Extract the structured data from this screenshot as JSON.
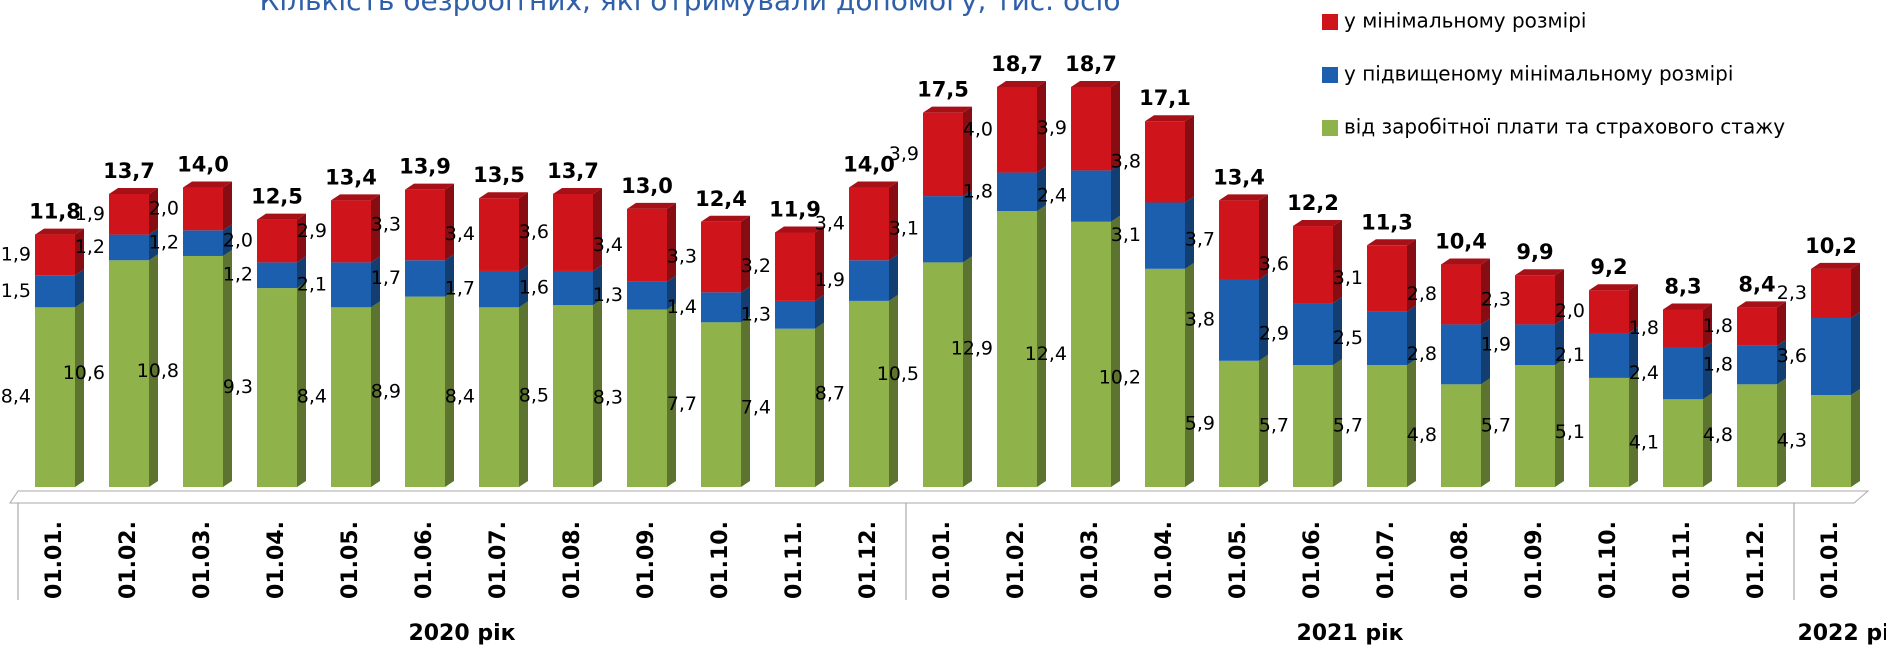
{
  "chart_data": {
    "type": "bar",
    "stacked": true,
    "title": "Кількість  безробітних, які отримували допомогу, тис. осіб",
    "categories": [
      "01.01.",
      "01.02.",
      "01.03.",
      "01.04.",
      "01.05.",
      "01.06.",
      "01.07.",
      "01.08.",
      "01.09.",
      "01.10.",
      "01.11.",
      "01.12.",
      "01.01.",
      "01.02.",
      "01.03.",
      "01.04.",
      "01.05.",
      "01.06.",
      "01.07.",
      "01.08.",
      "01.09.",
      "01.10.",
      "01.11.",
      "01.12.",
      "01.01."
    ],
    "groups": [
      {
        "label": "2020 рік",
        "size": 12
      },
      {
        "label": "2021 рік",
        "size": 12
      },
      {
        "label": "2022 рік",
        "size": 1
      }
    ],
    "series": [
      {
        "name": "від заробітної плати та страхового стажу",
        "color": "#8fb34a",
        "values": [
          8.4,
          10.6,
          10.8,
          9.3,
          8.4,
          8.9,
          8.4,
          8.5,
          8.3,
          7.7,
          7.4,
          8.7,
          10.5,
          12.9,
          12.4,
          10.2,
          5.9,
          5.7,
          5.7,
          4.8,
          5.7,
          5.1,
          4.1,
          4.8,
          4.3
        ],
        "value_labels": [
          "8,4",
          "10,6",
          "10,8",
          "9,3",
          "8,4",
          "8,9",
          "8,4",
          "8,5",
          "8,3",
          "7,7",
          "7,4",
          "8,7",
          "10,5",
          "12,9",
          "12,4",
          "10,2",
          "5,9",
          "5,7",
          "5,7",
          "4,8",
          "5,7",
          "5,1",
          "4,1",
          "4,8",
          "4,3"
        ]
      },
      {
        "name": "у підвищеному мінімальному розмірі",
        "color": "#1c5fae",
        "values": [
          1.5,
          1.2,
          1.2,
          1.2,
          2.1,
          1.7,
          1.7,
          1.6,
          1.3,
          1.4,
          1.3,
          1.9,
          3.1,
          1.8,
          2.4,
          3.1,
          3.8,
          2.9,
          2.5,
          2.8,
          1.9,
          2.1,
          2.4,
          1.8,
          3.6
        ],
        "value_labels": [
          "1,5",
          "1,2",
          "1,2",
          "1,2",
          "2,1",
          "1,7",
          "1,7",
          "1,6",
          "1,3",
          "1,4",
          "1,3",
          "1,9",
          "3,1",
          "1,8",
          "2,4",
          "3,1",
          "3,8",
          "2,9",
          "2,5",
          "2,8",
          "1,9",
          "2,1",
          "2,4",
          "1,8",
          "3,6"
        ]
      },
      {
        "name": "у  мінімальному розмірі",
        "color": "#d0141c",
        "values": [
          1.9,
          1.9,
          2.0,
          2.0,
          2.9,
          3.3,
          3.4,
          3.6,
          3.4,
          3.3,
          3.2,
          3.4,
          3.9,
          4.0,
          3.9,
          3.8,
          3.7,
          3.6,
          3.1,
          2.8,
          2.3,
          2.0,
          1.8,
          1.8,
          2.3
        ],
        "value_labels": [
          "1,9",
          "1,9",
          "2,0",
          "2,0",
          "2,9",
          "3,3",
          "3,4",
          "3,6",
          "3,4",
          "3,3",
          "3,2",
          "3,4",
          "3,9",
          "4,0",
          "3,9",
          "3,8",
          "3,7",
          "3,6",
          "3,1",
          "2,8",
          "2,3",
          "2,0",
          "1,8",
          "1,8",
          "2,3"
        ]
      }
    ],
    "totals": {
      "values": [
        11.8,
        13.7,
        14.0,
        12.5,
        13.4,
        13.9,
        13.5,
        13.7,
        13.0,
        12.4,
        11.9,
        14.0,
        17.5,
        18.7,
        18.7,
        17.1,
        13.4,
        12.2,
        11.3,
        10.4,
        9.9,
        9.2,
        8.3,
        8.4,
        10.2
      ],
      "value_labels": [
        "11,8",
        "13,7",
        "14,0",
        "12,5",
        "13,4",
        "13,9",
        "13,5",
        "13,7",
        "13,0",
        "12,4",
        "11,9",
        "14,0",
        "17,5",
        "18,7",
        "18,7",
        "17,1",
        "13,4",
        "12,2",
        "11,3",
        "10,4",
        "9,9",
        "9,2",
        "8,3",
        "8,4",
        "10,2"
      ]
    },
    "legend": "top-right"
  }
}
